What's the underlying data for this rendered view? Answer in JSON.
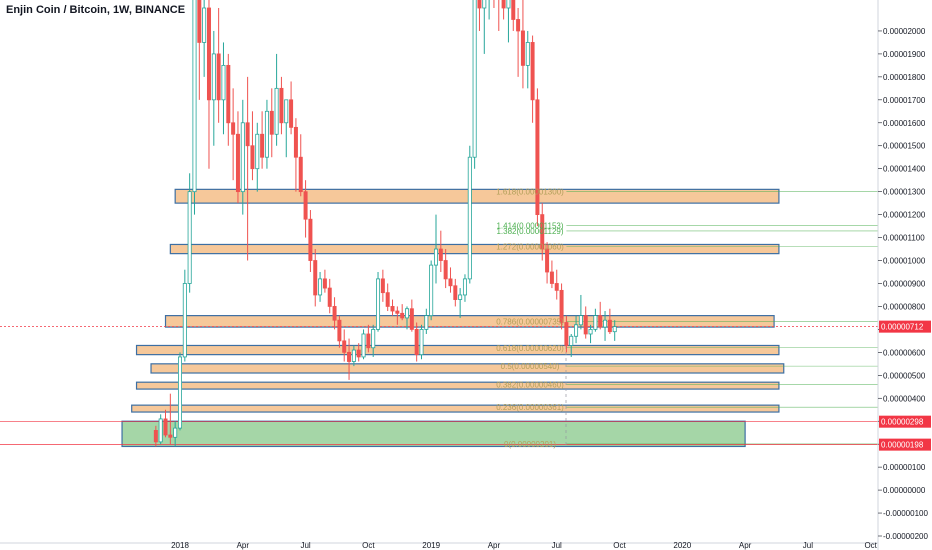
{
  "header": {
    "title": "Enjin Coin / Bitcoin, 1W, BINANCE"
  },
  "chart_data": {
    "type": "candlestick",
    "title": "Enjin Coin / Bitcoin, 1W, BINANCE",
    "ylim": [
      -2e-06,
      2.1e-05
    ],
    "y_ticks": [
      "0.00002000",
      "0.00001900",
      "0.00001800",
      "0.00001700",
      "0.00001600",
      "0.00001500",
      "0.00001400",
      "0.00001300",
      "0.00001200",
      "0.00001100",
      "0.00001000",
      "0.00000900",
      "0.00000800",
      "0.00000700",
      "0.00000600",
      "0.00000500",
      "0.00000400",
      "0.00000300",
      "0.00000200",
      "0.00000100",
      "0.00000000",
      "-0.00000100",
      "-0.00000200"
    ],
    "y_tick_values": [
      2e-05,
      1.9e-05,
      1.8e-05,
      1.7e-05,
      1.6e-05,
      1.5e-05,
      1.4e-05,
      1.3e-05,
      1.2e-05,
      1.1e-05,
      1e-05,
      9e-06,
      8e-06,
      7e-06,
      6e-06,
      5e-06,
      4e-06,
      3e-06,
      2e-06,
      1e-06,
      0,
      -1e-06,
      -2e-06
    ],
    "x_ticks": [
      "2018",
      "Apr",
      "Jul",
      "Oct",
      "2019",
      "Apr",
      "Jul",
      "Oct",
      "2020",
      "Apr",
      "Jul",
      "Oct"
    ],
    "x_tick_weeks": [
      0,
      13,
      26,
      39,
      52,
      65,
      78,
      91,
      104,
      117,
      130,
      143
    ],
    "price_badges": [
      {
        "label": "0.00000712",
        "value": 7.12e-06,
        "color": "#f23645"
      },
      {
        "label": "0.00000298",
        "value": 2.98e-06,
        "color": "#f23645"
      },
      {
        "label": "0.00000198",
        "value": 1.98e-06,
        "color": "#f23645"
      }
    ],
    "fib_levels": [
      {
        "label": "1.618(0.00001300)",
        "value": 1.3e-05,
        "color": "#b2a05a"
      },
      {
        "label": "1.414(0.00001153)",
        "value": 1.153e-05,
        "color": "#4caf50"
      },
      {
        "label": "1.382(0.00001129)",
        "value": 1.129e-05,
        "color": "#4caf50"
      },
      {
        "label": "1.272(0.00001060)",
        "value": 1.06e-05,
        "color": "#b2a05a"
      },
      {
        "label": "0.786(0.00000735)",
        "value": 7.35e-06,
        "color": "#b2a05a"
      },
      {
        "label": "0.618(0.00000620)",
        "value": 6.2e-06,
        "color": "#b2a05a"
      },
      {
        "label": "0.5(0.00000540)",
        "value": 5.4e-06,
        "color": "#b2a05a"
      },
      {
        "label": "0.382(0.00000460)",
        "value": 4.6e-06,
        "color": "#b2a05a"
      },
      {
        "label": "0.236(0.00000361)",
        "value": 3.61e-06,
        "color": "#b2a05a"
      },
      {
        "label": "0(0.00000201)",
        "value": 2.01e-06,
        "color": "#b2a05a"
      }
    ],
    "zones": [
      {
        "from_week": -1,
        "to_week": 124,
        "top": 1.31e-05,
        "bottom": 1.25e-05,
        "color": "#f6c89a"
      },
      {
        "from_week": -2,
        "to_week": 124,
        "top": 1.07e-05,
        "bottom": 1.03e-05,
        "color": "#f6c89a"
      },
      {
        "from_week": -3,
        "to_week": 123,
        "top": 7.6e-06,
        "bottom": 7.1e-06,
        "color": "#f6c89a"
      },
      {
        "from_week": -9,
        "to_week": 124,
        "top": 6.3e-06,
        "bottom": 5.9e-06,
        "color": "#f6c89a"
      },
      {
        "from_week": -6,
        "to_week": 125,
        "top": 5.5e-06,
        "bottom": 5.1e-06,
        "color": "#f6c89a"
      },
      {
        "from_week": -9,
        "to_week": 124,
        "top": 4.7e-06,
        "bottom": 4.4e-06,
        "color": "#f6c89a"
      },
      {
        "from_week": -10,
        "to_week": 124,
        "top": 3.7e-06,
        "bottom": 3.4e-06,
        "color": "#f6c89a"
      },
      {
        "from_week": -12,
        "to_week": 117,
        "top": 3e-06,
        "bottom": 1.9e-06,
        "color": "#a5d6a7"
      }
    ],
    "colors": {
      "up": "#26a69a",
      "down": "#ef5350",
      "zone_border": "#3d6fa3",
      "grid": "#ffffff",
      "axis_line": "#d1d4dc"
    },
    "candles": [
      {
        "o": 2.6e-06,
        "h": 2.8e-06,
        "l": 1.9e-06,
        "c": 2.1e-06
      },
      {
        "o": 2.1e-06,
        "h": 3.3e-06,
        "l": 2e-06,
        "c": 3.1e-06
      },
      {
        "o": 3.1e-06,
        "h": 3.5e-06,
        "l": 2.3e-06,
        "c": 2.4e-06
      },
      {
        "o": 2.4e-06,
        "h": 4.2e-06,
        "l": 2e-06,
        "c": 2.3e-06
      },
      {
        "o": 2.3e-06,
        "h": 3e-06,
        "l": 1.9e-06,
        "c": 2.7e-06
      },
      {
        "o": 2.7e-06,
        "h": 6e-06,
        "l": 2.6e-06,
        "c": 5.8e-06
      },
      {
        "o": 5.8e-06,
        "h": 9.6e-06,
        "l": 5.6e-06,
        "c": 9e-06
      },
      {
        "o": 9e-06,
        "h": 1.38e-05,
        "l": 8.6e-06,
        "c": 1.3e-05
      },
      {
        "o": 1.3e-05,
        "h": 2.2e-05,
        "l": 1.2e-05,
        "c": 2.15e-05
      },
      {
        "o": 2.15e-05,
        "h": 2.3e-05,
        "l": 1.7e-05,
        "c": 1.95e-05
      },
      {
        "o": 1.95e-05,
        "h": 2.2e-05,
        "l": 1.8e-05,
        "c": 2.1e-05
      },
      {
        "o": 2.1e-05,
        "h": 2.2e-05,
        "l": 1.4e-05,
        "c": 1.7e-05
      },
      {
        "o": 1.7e-05,
        "h": 2e-05,
        "l": 1.5e-05,
        "c": 1.9e-05
      },
      {
        "o": 1.9e-05,
        "h": 2.1e-05,
        "l": 1.6e-05,
        "c": 1.7e-05
      },
      {
        "o": 1.7e-05,
        "h": 1.95e-05,
        "l": 1.55e-05,
        "c": 1.85e-05
      },
      {
        "o": 1.85e-05,
        "h": 1.9e-05,
        "l": 1.5e-05,
        "c": 1.6e-05
      },
      {
        "o": 1.6e-05,
        "h": 1.75e-05,
        "l": 1.35e-05,
        "c": 1.55e-05
      },
      {
        "o": 1.55e-05,
        "h": 1.65e-05,
        "l": 1.25e-05,
        "c": 1.3e-05
      },
      {
        "o": 1.3e-05,
        "h": 1.7e-05,
        "l": 1.2e-05,
        "c": 1.6e-05
      },
      {
        "o": 1.6e-05,
        "h": 1.8e-05,
        "l": 1e-05,
        "c": 1.5e-05
      },
      {
        "o": 1.5e-05,
        "h": 1.65e-05,
        "l": 1.35e-05,
        "c": 1.4e-05
      },
      {
        "o": 1.4e-05,
        "h": 1.6e-05,
        "l": 1.3e-05,
        "c": 1.55e-05
      },
      {
        "o": 1.55e-05,
        "h": 1.65e-05,
        "l": 1.4e-05,
        "c": 1.45e-05
      },
      {
        "o": 1.45e-05,
        "h": 1.7e-05,
        "l": 1.4e-05,
        "c": 1.65e-05
      },
      {
        "o": 1.65e-05,
        "h": 1.75e-05,
        "l": 1.45e-05,
        "c": 1.55e-05
      },
      {
        "o": 1.55e-05,
        "h": 1.9e-05,
        "l": 1.5e-05,
        "c": 1.75e-05
      },
      {
        "o": 1.75e-05,
        "h": 1.8e-05,
        "l": 1.55e-05,
        "c": 1.6e-05
      },
      {
        "o": 1.6e-05,
        "h": 1.7e-05,
        "l": 1.45e-05,
        "c": 1.7e-05
      },
      {
        "o": 1.7e-05,
        "h": 1.78e-05,
        "l": 1.55e-05,
        "c": 1.58e-05
      },
      {
        "o": 1.58e-05,
        "h": 1.62e-05,
        "l": 1.3e-05,
        "c": 1.45e-05
      },
      {
        "o": 1.45e-05,
        "h": 1.55e-05,
        "l": 1.28e-05,
        "c": 1.3e-05
      },
      {
        "o": 1.3e-05,
        "h": 1.35e-05,
        "l": 1.1e-05,
        "c": 1.18e-05
      },
      {
        "o": 1.18e-05,
        "h": 1.22e-05,
        "l": 9.5e-06,
        "c": 1e-05
      },
      {
        "o": 1e-05,
        "h": 1.05e-05,
        "l": 8e-06,
        "c": 8.5e-06
      },
      {
        "o": 8.5e-06,
        "h": 9.5e-06,
        "l": 8.2e-06,
        "c": 9.2e-06
      },
      {
        "o": 9.2e-06,
        "h": 9.6e-06,
        "l": 8.6e-06,
        "c": 8.8e-06
      },
      {
        "o": 8.8e-06,
        "h": 9.2e-06,
        "l": 7.7e-06,
        "c": 8e-06
      },
      {
        "o": 8e-06,
        "h": 8.4e-06,
        "l": 7e-06,
        "c": 7.4e-06
      },
      {
        "o": 7.4e-06,
        "h": 7.6e-06,
        "l": 6.2e-06,
        "c": 6.5e-06
      },
      {
        "o": 6.5e-06,
        "h": 7e-06,
        "l": 5.6e-06,
        "c": 6e-06
      },
      {
        "o": 6e-06,
        "h": 6.6e-06,
        "l": 4.8e-06,
        "c": 5.6e-06
      },
      {
        "o": 5.6e-06,
        "h": 6.3e-06,
        "l": 5.4e-06,
        "c": 6.1e-06
      },
      {
        "o": 6.1e-06,
        "h": 6.4e-06,
        "l": 5.6e-06,
        "c": 5.8e-06
      },
      {
        "o": 5.8e-06,
        "h": 7e-06,
        "l": 5.7e-06,
        "c": 6.8e-06
      },
      {
        "o": 6.8e-06,
        "h": 7.2e-06,
        "l": 6e-06,
        "c": 6.2e-06
      },
      {
        "o": 6.2e-06,
        "h": 7.2e-06,
        "l": 5.8e-06,
        "c": 7e-06
      },
      {
        "o": 7e-06,
        "h": 9.5e-06,
        "l": 6.9e-06,
        "c": 9.2e-06
      },
      {
        "o": 9.2e-06,
        "h": 9.6e-06,
        "l": 8.2e-06,
        "c": 8.6e-06
      },
      {
        "o": 8.6e-06,
        "h": 9e-06,
        "l": 7.8e-06,
        "c": 8e-06
      },
      {
        "o": 8e-06,
        "h": 8.3e-06,
        "l": 7.6e-06,
        "c": 7.8e-06
      },
      {
        "o": 7.8e-06,
        "h": 8e-06,
        "l": 7.2e-06,
        "c": 7.7e-06
      },
      {
        "o": 7.7e-06,
        "h": 8.1e-06,
        "l": 7.4e-06,
        "c": 7.5e-06
      },
      {
        "o": 7.5e-06,
        "h": 8e-06,
        "l": 7e-06,
        "c": 7.9e-06
      },
      {
        "o": 7.9e-06,
        "h": 8.3e-06,
        "l": 6.9e-06,
        "c": 7e-06
      },
      {
        "o": 7e-06,
        "h": 7.3e-06,
        "l": 5.6e-06,
        "c": 5.9e-06
      },
      {
        "o": 5.9e-06,
        "h": 7.2e-06,
        "l": 5.7e-06,
        "c": 7e-06
      },
      {
        "o": 7e-06,
        "h": 7.9e-06,
        "l": 6.8e-06,
        "c": 7.6e-06
      },
      {
        "o": 7.6e-06,
        "h": 1e-05,
        "l": 7.4e-06,
        "c": 9.8e-06
      },
      {
        "o": 9.8e-06,
        "h": 1.2e-05,
        "l": 9e-06,
        "c": 1.05e-05
      },
      {
        "o": 1.05e-05,
        "h": 1.13e-05,
        "l": 9.5e-06,
        "c": 1e-05
      },
      {
        "o": 1e-05,
        "h": 1.05e-05,
        "l": 8.8e-06,
        "c": 9.2e-06
      },
      {
        "o": 9.2e-06,
        "h": 9.7e-06,
        "l": 8.6e-06,
        "c": 8.9e-06
      },
      {
        "o": 8.9e-06,
        "h": 9.2e-06,
        "l": 8e-06,
        "c": 8.3e-06
      },
      {
        "o": 8.3e-06,
        "h": 8.8e-06,
        "l": 7.5e-06,
        "c": 8.5e-06
      },
      {
        "o": 8.5e-06,
        "h": 9.4e-06,
        "l": 8.2e-06,
        "c": 9.2e-06
      },
      {
        "o": 9.2e-06,
        "h": 1.5e-05,
        "l": 9e-06,
        "c": 1.45e-05
      },
      {
        "o": 1.45e-05,
        "h": 2.2e-05,
        "l": 1.4e-05,
        "c": 2.15e-05
      },
      {
        "o": 2.15e-05,
        "h": 2.3e-05,
        "l": 2e-05,
        "c": 2.1e-05
      },
      {
        "o": 2.1e-05,
        "h": 2.25e-05,
        "l": 1.9e-05,
        "c": 2.2e-05
      },
      {
        "o": 2.2e-05,
        "h": 2.3e-05,
        "l": 2.05e-05,
        "c": 2.25e-05
      },
      {
        "o": 2.25e-05,
        "h": 2.3e-05,
        "l": 2.1e-05,
        "c": 2.2e-05
      },
      {
        "o": 2.2e-05,
        "h": 2.25e-05,
        "l": 2e-05,
        "c": 2.15e-05
      },
      {
        "o": 2.15e-05,
        "h": 2.2e-05,
        "l": 2.05e-05,
        "c": 2.1e-05
      },
      {
        "o": 2.1e-05,
        "h": 2.25e-05,
        "l": 1.95e-05,
        "c": 2.2e-05
      },
      {
        "o": 2.2e-05,
        "h": 2.25e-05,
        "l": 2e-05,
        "c": 2.05e-05
      },
      {
        "o": 2.05e-05,
        "h": 2.1e-05,
        "l": 1.8e-05,
        "c": 2e-05
      },
      {
        "o": 2e-05,
        "h": 2.2e-05,
        "l": 1.75e-05,
        "c": 1.85e-05
      },
      {
        "o": 1.85e-05,
        "h": 2e-05,
        "l": 1.75e-05,
        "c": 1.95e-05
      },
      {
        "o": 1.95e-05,
        "h": 1.98e-05,
        "l": 1.6e-05,
        "c": 1.7e-05
      },
      {
        "o": 1.7e-05,
        "h": 1.75e-05,
        "l": 1.15e-05,
        "c": 1.2e-05
      },
      {
        "o": 1.2e-05,
        "h": 1.25e-05,
        "l": 1e-05,
        "c": 1.05e-05
      },
      {
        "o": 1.05e-05,
        "h": 1.08e-05,
        "l": 9e-06,
        "c": 9.5e-06
      },
      {
        "o": 9.5e-06,
        "h": 1e-05,
        "l": 8.8e-06,
        "c": 9e-06
      },
      {
        "o": 9e-06,
        "h": 9.6e-06,
        "l": 8.3e-06,
        "c": 8.7e-06
      },
      {
        "o": 8.7e-06,
        "h": 9e-06,
        "l": 7e-06,
        "c": 7.3e-06
      },
      {
        "o": 7.3e-06,
        "h": 7.6e-06,
        "l": 6e-06,
        "c": 6.3e-06
      },
      {
        "o": 6.3e-06,
        "h": 6.8e-06,
        "l": 5.8e-06,
        "c": 6.7e-06
      },
      {
        "o": 6.7e-06,
        "h": 7.6e-06,
        "l": 6.4e-06,
        "c": 7.2e-06
      },
      {
        "o": 7.2e-06,
        "h": 8.5e-06,
        "l": 7e-06,
        "c": 7.6e-06
      },
      {
        "o": 7.6e-06,
        "h": 8e-06,
        "l": 6.6e-06,
        "c": 6.8e-06
      },
      {
        "o": 6.8e-06,
        "h": 7.2e-06,
        "l": 6.4e-06,
        "c": 7e-06
      },
      {
        "o": 7e-06,
        "h": 7.9e-06,
        "l": 6.9e-06,
        "c": 7.6e-06
      },
      {
        "o": 7.6e-06,
        "h": 8.2e-06,
        "l": 7e-06,
        "c": 7.1e-06
      },
      {
        "o": 7.1e-06,
        "h": 7.8e-06,
        "l": 6.5e-06,
        "c": 7.4e-06
      },
      {
        "o": 7.4e-06,
        "h": 7.9e-06,
        "l": 6.8e-06,
        "c": 6.9e-06
      },
      {
        "o": 6.9e-06,
        "h": 7.4e-06,
        "l": 6.5e-06,
        "c": 7.12e-06
      }
    ]
  }
}
